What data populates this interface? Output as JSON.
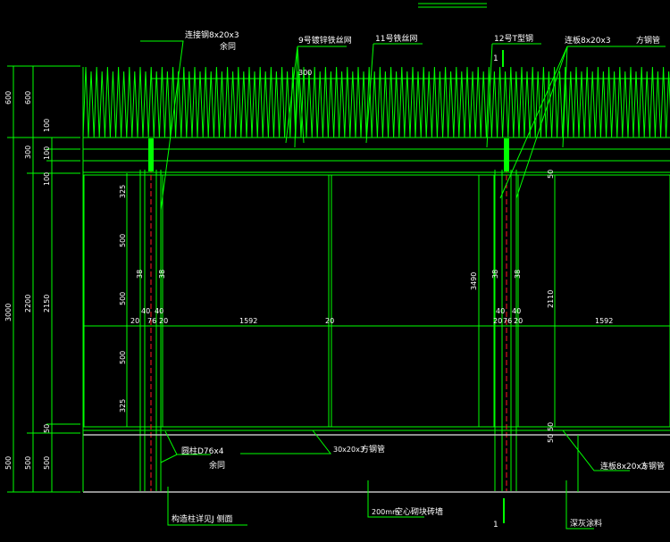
{
  "colors": {
    "background": "#000000",
    "line": "#00ff00",
    "mesh": "#b0b0b0",
    "centerline": "#ff2020",
    "text": "#ffffff"
  },
  "section_marks": {
    "top": "1",
    "bottom": "1"
  },
  "labels": {
    "connector_top_left": "连接钢8x20x3",
    "same_top_left": "余同",
    "galvanized_mesh": "9号镀锌铁丝网",
    "wire_mesh": "11号铁丝网",
    "t_steel": "12号T型钢",
    "connector_top_right": "连板8x20x3",
    "square_tube_top_right": "方钢管",
    "top_spacing": "300",
    "round_post": "圆柱D76x4",
    "same_bottom_left": "余同",
    "square_tube_mid": "30x20x3",
    "square_tube_mid_name": "方钢管",
    "connector_bottom_right": "连板8x20x3",
    "square_tube_bottom_right": "方钢管",
    "column_detail": "构造柱详见J 侧面",
    "wall": "200mm",
    "wall_name": "空心砌块砖墙",
    "coating": "深灰涂料"
  },
  "left_dims": {
    "outer": [
      "600",
      "3000",
      "500"
    ],
    "middle": [
      "600",
      "300",
      "2200",
      "500"
    ],
    "inner": [
      "100",
      "100",
      "100",
      "2150",
      "50",
      "500"
    ]
  },
  "post_dims": {
    "vertical": [
      "325",
      "500",
      "500",
      "500",
      "325"
    ],
    "left_post": {
      "a": "38",
      "b": "38",
      "c": "40",
      "d": "40",
      "e": "20",
      "f": "76",
      "g": "20"
    },
    "panel_width_1": "1592",
    "gap_mid": "20",
    "right_post": {
      "a": "38",
      "b": "38",
      "c": "40",
      "d": "40",
      "e": "20",
      "f": "76",
      "g": "20"
    },
    "panel_width_2": "1592",
    "height_right": "3490",
    "panel_height_right": "2110",
    "top_gap_right": "50",
    "bottom_gap_right": "50",
    "bottom_gap_right_2": "50"
  }
}
